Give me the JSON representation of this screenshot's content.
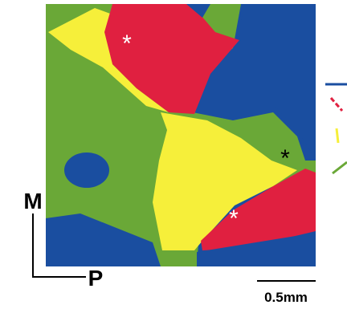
{
  "labels": {
    "medial": "M",
    "posterior": "P",
    "scale_bar": "0.5mm"
  },
  "markers": [
    "*",
    "*",
    "*"
  ]
}
